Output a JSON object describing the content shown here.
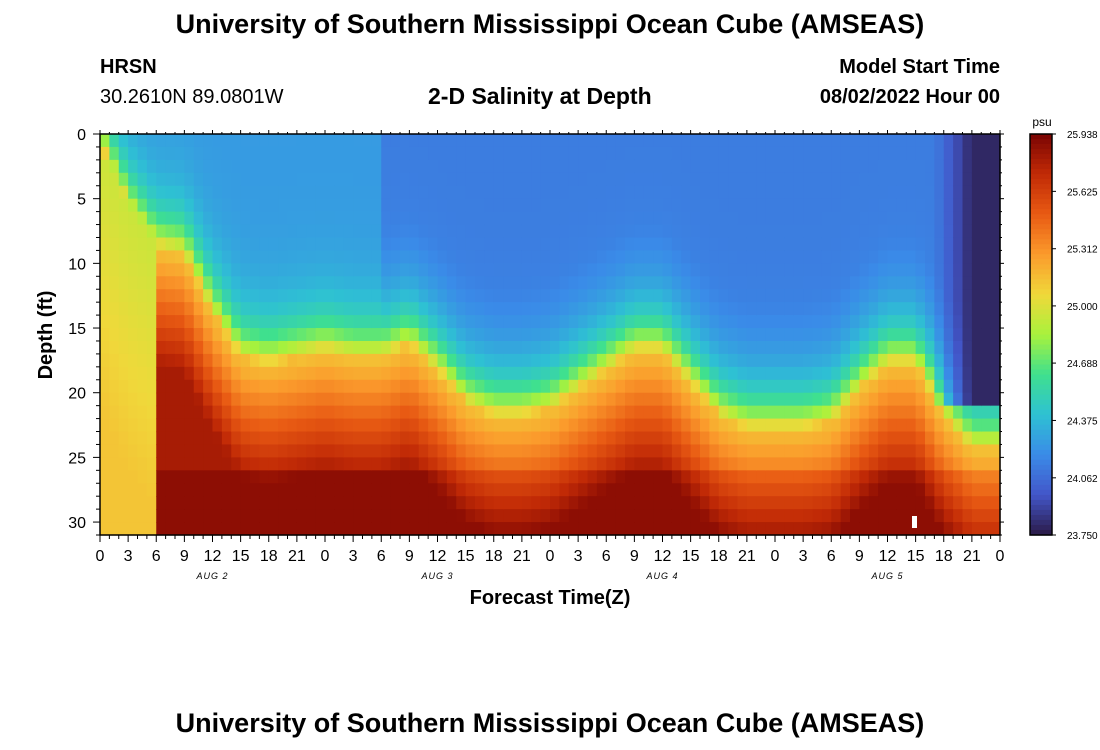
{
  "header": {
    "title": "University of Southern Mississippi Ocean Cube (AMSEAS)",
    "station": "HRSN",
    "coords": "30.2610N  89.0801W",
    "subtitle": "2-D Salinity at Depth",
    "model_start_label": "Model Start Time",
    "model_start_value": "08/02/2022 Hour 00"
  },
  "footer": {
    "title": "University of Southern Mississippi Ocean Cube (AMSEAS)"
  },
  "colors": {
    "palette": [
      "#2b1a46",
      "#4256c9",
      "#3a8be8",
      "#2ec1d3",
      "#3fe08e",
      "#a9f23c",
      "#f0d83a",
      "#fb9a2c",
      "#e85a13",
      "#c12a06",
      "#7a0403"
    ]
  },
  "chart_data": {
    "type": "heatmap",
    "title": "2-D Salinity at Depth",
    "xlabel": "Forecast Time(Z)",
    "ylabel": "Depth (ft)",
    "x_range_hours": [
      0,
      96
    ],
    "y_range_ft": [
      0,
      31
    ],
    "x_tick_labels": [
      "0",
      "3",
      "6",
      "9",
      "12",
      "15",
      "18",
      "21",
      "0",
      "3",
      "6",
      "9",
      "12",
      "15",
      "18",
      "21",
      "0",
      "3",
      "6",
      "9",
      "12",
      "15",
      "18",
      "21",
      "0",
      "3",
      "6",
      "9",
      "12",
      "15",
      "18",
      "21",
      "0"
    ],
    "y_tick_labels": [
      "0",
      "5",
      "10",
      "15",
      "20",
      "25",
      "30"
    ],
    "date_labels": [
      {
        "hour": 12,
        "text": "AUG 2"
      },
      {
        "hour": 36,
        "text": "AUG 3"
      },
      {
        "hour": 60,
        "text": "AUG 4"
      },
      {
        "hour": 84,
        "text": "AUG 5"
      }
    ],
    "colorbar": {
      "unit": "psu",
      "min": 23.75,
      "max": 25.938,
      "tick_labels": [
        "25.938",
        "25.625",
        "25.312",
        "25.000",
        "24.688",
        "24.375",
        "24.062",
        "23.750"
      ]
    },
    "halocline_depth_ft": [
      [
        0,
        1
      ],
      [
        3,
        6
      ],
      [
        6,
        9
      ],
      [
        9,
        9.5
      ],
      [
        12,
        14
      ],
      [
        15,
        17.5
      ],
      [
        18,
        18
      ],
      [
        21,
        17.5
      ],
      [
        24,
        17
      ],
      [
        27,
        17.5
      ],
      [
        30,
        17.5
      ],
      [
        33,
        16.5
      ],
      [
        36,
        18.5
      ],
      [
        39,
        21
      ],
      [
        42,
        22
      ],
      [
        45,
        22
      ],
      [
        48,
        21.5
      ],
      [
        51,
        20
      ],
      [
        54,
        18.5
      ],
      [
        57,
        17
      ],
      [
        60,
        17
      ],
      [
        63,
        19.5
      ],
      [
        66,
        22
      ],
      [
        69,
        23
      ],
      [
        72,
        23
      ],
      [
        75,
        23
      ],
      [
        78,
        22.5
      ],
      [
        81,
        20
      ],
      [
        84,
        18
      ],
      [
        87,
        18
      ],
      [
        90,
        22
      ],
      [
        93,
        24.5
      ],
      [
        96,
        24.5
      ]
    ],
    "low_salinity_zone": {
      "start_hour": 89,
      "end_hour": 96,
      "min_psu": 23.75,
      "depth_to_ft": 21
    }
  }
}
